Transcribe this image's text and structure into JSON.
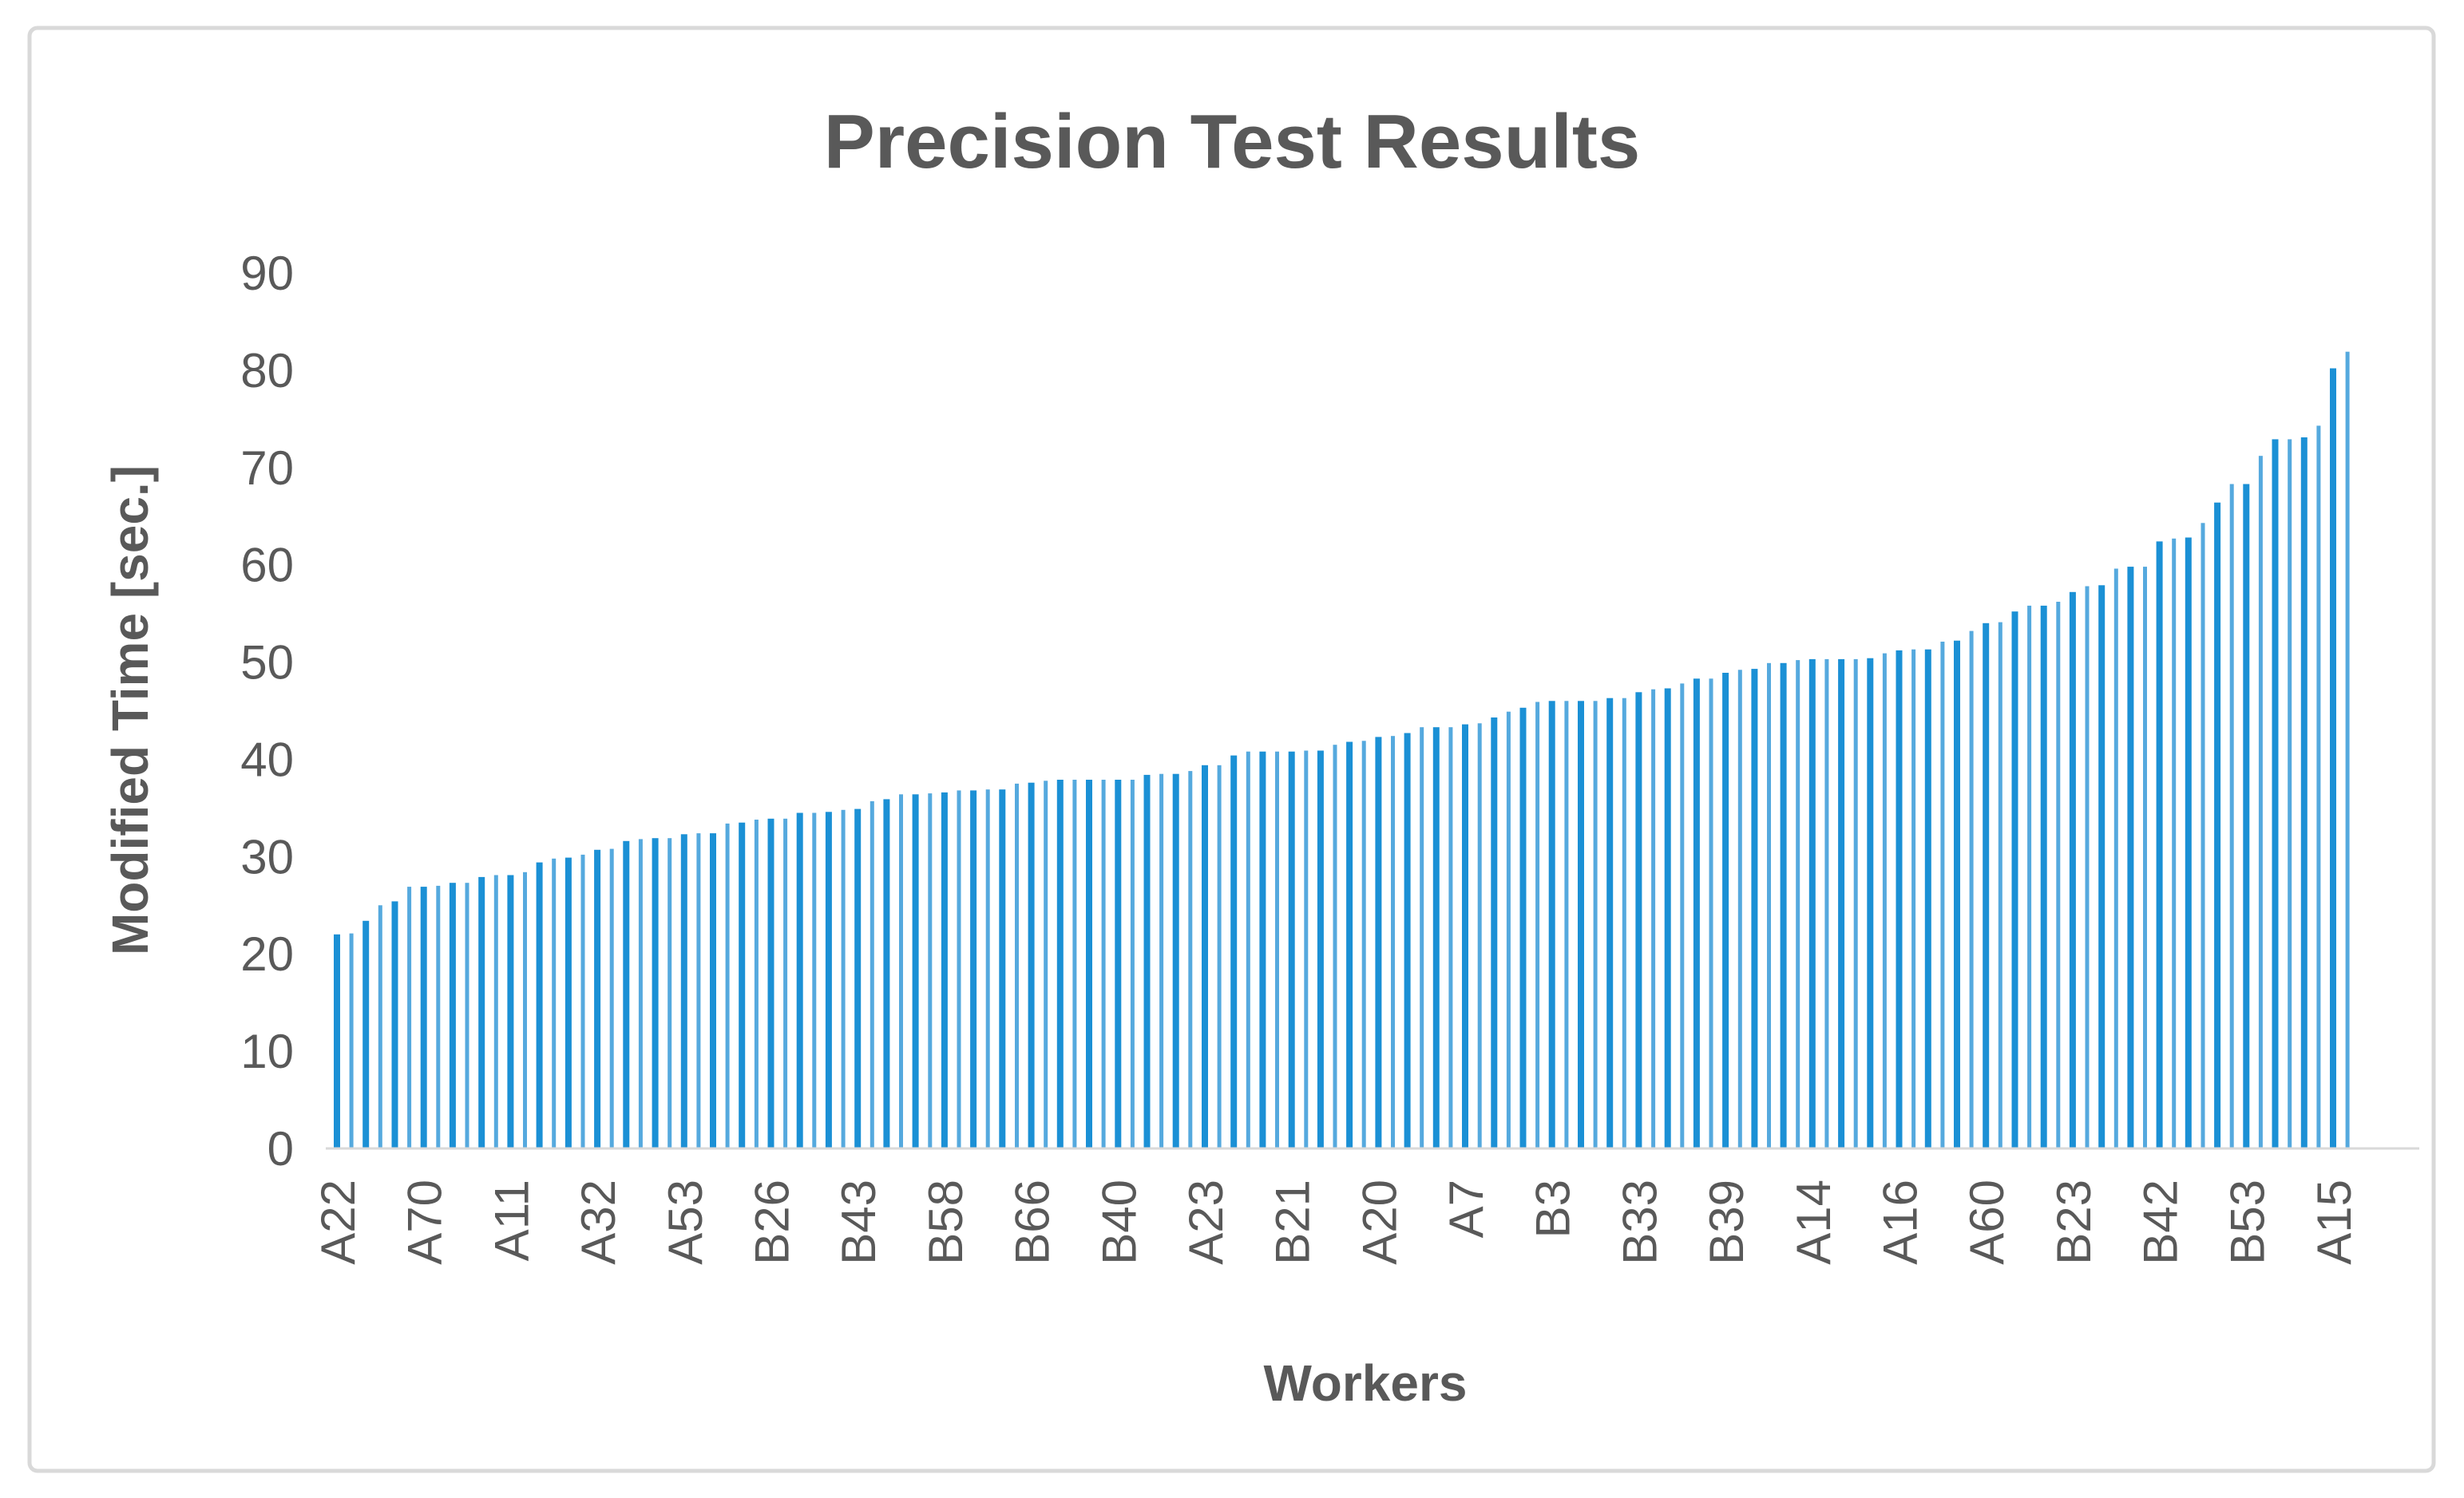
{
  "window": {
    "background": "#ffffff",
    "border_color": "#d9d9d9"
  },
  "chart_data": {
    "type": "bar",
    "title": "Precision Test Results",
    "xlabel": "Workers",
    "ylabel": "Modified Time [sec.]",
    "ylim": [
      0,
      90
    ],
    "yticks": [
      0,
      10,
      20,
      30,
      40,
      50,
      60,
      70,
      80,
      90
    ],
    "grid": false,
    "legend": false,
    "sorted": "ascending",
    "bar_color": "#1b90d5",
    "bar_color_alt": "#55a9de",
    "text_color": "#595959",
    "axis_line_color": "#d9d9d9",
    "x_tick_interval": 6,
    "x_ticks": [
      {
        "index": 0,
        "label": "A22"
      },
      {
        "index": 6,
        "label": "A70"
      },
      {
        "index": 12,
        "label": "A11"
      },
      {
        "index": 18,
        "label": "A32"
      },
      {
        "index": 24,
        "label": "A53"
      },
      {
        "index": 30,
        "label": "B26"
      },
      {
        "index": 36,
        "label": "B43"
      },
      {
        "index": 42,
        "label": "B58"
      },
      {
        "index": 48,
        "label": "B66"
      },
      {
        "index": 54,
        "label": "B40"
      },
      {
        "index": 60,
        "label": "A23"
      },
      {
        "index": 66,
        "label": "B21"
      },
      {
        "index": 72,
        "label": "A20"
      },
      {
        "index": 78,
        "label": "A7"
      },
      {
        "index": 84,
        "label": "B3"
      },
      {
        "index": 90,
        "label": "B33"
      },
      {
        "index": 96,
        "label": "B39"
      },
      {
        "index": 102,
        "label": "A14"
      },
      {
        "index": 108,
        "label": "A16"
      },
      {
        "index": 114,
        "label": "A60"
      },
      {
        "index": 120,
        "label": "B23"
      },
      {
        "index": 126,
        "label": "B42"
      },
      {
        "index": 132,
        "label": "B53"
      },
      {
        "index": 138,
        "label": "A15"
      }
    ],
    "values": [
      22.0,
      22.1,
      23.4,
      25.0,
      25.4,
      26.9,
      26.9,
      27.0,
      27.3,
      27.3,
      27.9,
      28.1,
      28.1,
      28.4,
      29.4,
      29.8,
      29.9,
      30.2,
      30.7,
      30.8,
      31.6,
      31.8,
      31.9,
      31.9,
      32.3,
      32.4,
      32.4,
      33.4,
      33.5,
      33.8,
      33.9,
      33.9,
      34.5,
      34.5,
      34.6,
      34.8,
      34.9,
      35.7,
      35.9,
      36.4,
      36.4,
      36.5,
      36.6,
      36.8,
      36.8,
      36.9,
      36.9,
      37.5,
      37.6,
      37.8,
      37.9,
      37.9,
      37.9,
      37.9,
      37.9,
      37.9,
      38.4,
      38.5,
      38.5,
      38.8,
      39.4,
      39.4,
      40.4,
      40.8,
      40.8,
      40.8,
      40.8,
      40.9,
      40.9,
      41.5,
      41.8,
      41.9,
      42.3,
      42.4,
      42.7,
      43.3,
      43.3,
      43.3,
      43.6,
      43.7,
      44.3,
      44.9,
      45.3,
      45.9,
      46.0,
      46.0,
      46.0,
      46.0,
      46.3,
      46.3,
      46.9,
      47.2,
      47.3,
      47.8,
      48.3,
      48.3,
      48.9,
      49.2,
      49.3,
      49.9,
      49.9,
      50.2,
      50.3,
      50.3,
      50.3,
      50.3,
      50.4,
      50.9,
      51.2,
      51.3,
      51.3,
      52.1,
      52.2,
      53.2,
      54.0,
      54.1,
      55.2,
      55.8,
      55.8,
      56.2,
      57.2,
      57.8,
      57.9,
      59.6,
      59.8,
      59.8,
      62.4,
      62.7,
      62.8,
      64.3,
      66.4,
      68.3,
      68.3,
      71.2,
      72.9,
      72.9,
      73.1,
      74.3,
      80.2,
      81.9
    ]
  }
}
